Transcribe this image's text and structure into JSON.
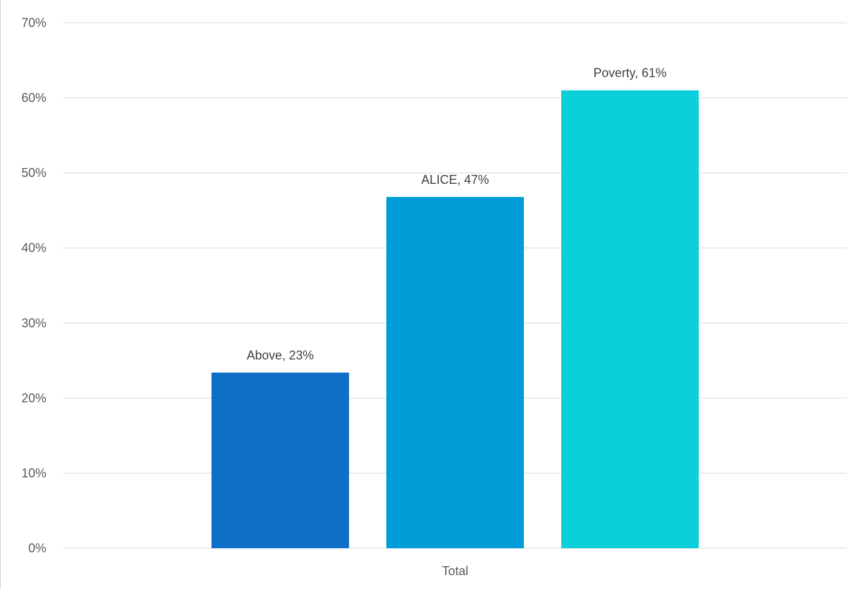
{
  "chart_data": {
    "type": "bar",
    "title": "",
    "xlabel": "",
    "ylabel": "",
    "categories": [
      "Total"
    ],
    "series": [
      {
        "name": "Above",
        "values": [
          23.4
        ],
        "color": "#0f6fc6",
        "data_label": "Above, 23%"
      },
      {
        "name": "ALICE",
        "values": [
          46.8
        ],
        "color": "#009dd9",
        "data_label": "ALICE, 47%"
      },
      {
        "name": "Poverty",
        "values": [
          61.0
        ],
        "color": "#0bd0d9",
        "data_label": "Poverty, 61%"
      }
    ],
    "ylim": [
      0,
      70
    ],
    "yticks": [
      0,
      10,
      20,
      30,
      40,
      50,
      60,
      70
    ],
    "ytick_labels": [
      "0%",
      "10%",
      "20%",
      "30%",
      "40%",
      "50%",
      "60%",
      "70%"
    ],
    "grid": true,
    "legend": "none",
    "gridline_color": "#d9d9d9"
  }
}
